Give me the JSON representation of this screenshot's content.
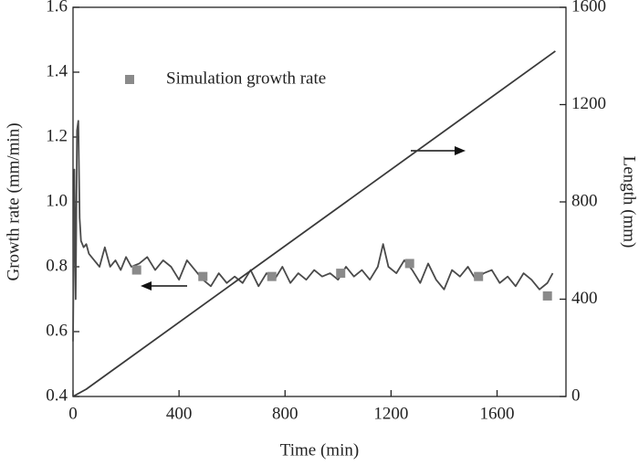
{
  "chart_data": {
    "type": "line",
    "xlabel": "Time (min)",
    "ylabel": "Growth rate (mm/min)",
    "y2label": "Length (mm)",
    "xlim": [
      0,
      1860
    ],
    "xticks": [
      0,
      400,
      800,
      1200,
      1600
    ],
    "ylim": [
      0.4,
      1.6
    ],
    "yticks": [
      0.4,
      0.6,
      0.8,
      {
        "value": 1,
        "label": "1.0"
      },
      1.2,
      1.4,
      1.6
    ],
    "y2lim": [
      0,
      1600
    ],
    "y2ticks": [
      0,
      400,
      800,
      1200,
      1600
    ],
    "legend": "upper left",
    "series": [
      {
        "mode": "lines",
        "color": "#4a4a4a",
        "axis": "y",
        "x": [
          0,
          5,
          10,
          15,
          20,
          25,
          30,
          40,
          50,
          60,
          80,
          100,
          120,
          140,
          160,
          180,
          200,
          220,
          250,
          280,
          310,
          340,
          370,
          400,
          430,
          460,
          490,
          520,
          550,
          580,
          610,
          640,
          670,
          700,
          730,
          760,
          790,
          820,
          850,
          880,
          910,
          940,
          970,
          1000,
          1030,
          1060,
          1090,
          1120,
          1150,
          1170,
          1190,
          1220,
          1250,
          1280,
          1310,
          1340,
          1370,
          1400,
          1430,
          1460,
          1490,
          1520,
          1550,
          1580,
          1610,
          1640,
          1670,
          1700,
          1730,
          1760,
          1790,
          1810
        ],
        "values": [
          0.57,
          1.1,
          0.7,
          1.22,
          1.25,
          0.95,
          0.88,
          0.86,
          0.87,
          0.84,
          0.82,
          0.8,
          0.86,
          0.8,
          0.82,
          0.79,
          0.83,
          0.8,
          0.81,
          0.83,
          0.79,
          0.82,
          0.8,
          0.76,
          0.82,
          0.79,
          0.76,
          0.74,
          0.78,
          0.75,
          0.77,
          0.75,
          0.79,
          0.74,
          0.78,
          0.76,
          0.8,
          0.75,
          0.78,
          0.76,
          0.79,
          0.77,
          0.78,
          0.76,
          0.8,
          0.77,
          0.79,
          0.76,
          0.8,
          0.87,
          0.8,
          0.78,
          0.82,
          0.79,
          0.75,
          0.81,
          0.76,
          0.73,
          0.79,
          0.77,
          0.8,
          0.76,
          0.78,
          0.79,
          0.75,
          0.77,
          0.74,
          0.78,
          0.76,
          0.73,
          0.75,
          0.78
        ]
      },
      {
        "mode": "markers",
        "name": "Simulation growth rate",
        "color": "#8a8a8a",
        "axis": "y",
        "x": [
          240,
          490,
          750,
          1010,
          1270,
          1530,
          1790
        ],
        "values": [
          0.79,
          0.77,
          0.77,
          0.78,
          0.81,
          0.77,
          0.71
        ]
      },
      {
        "mode": "lines",
        "color": "#3a3a3a",
        "axis": "y2",
        "x": [
          0,
          50,
          1820
        ],
        "values": [
          0,
          30,
          1420
        ]
      }
    ]
  }
}
